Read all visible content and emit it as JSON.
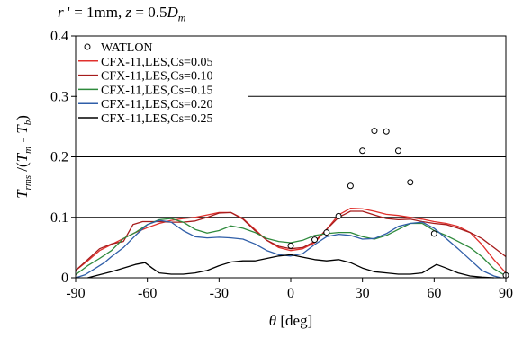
{
  "title_text": "r' = 1mm, z = 0.5D_m",
  "title_parts": {
    "r": "r",
    "eq1": " ' = 1mm, ",
    "z": "z",
    "eq2": " = 0.5",
    "D": "D",
    "sub": "m"
  },
  "chart_data": {
    "type": "line",
    "xlabel": "θ [deg]",
    "ylabel": "T_rms /(T_m - T_b)",
    "xlim": [
      -90,
      90
    ],
    "ylim": [
      0,
      0.4
    ],
    "x_ticks": [
      -90,
      -60,
      -30,
      0,
      30,
      60,
      90
    ],
    "x_tick_labels": [
      "-90",
      "-60",
      "-30",
      "0",
      "30",
      "60",
      "90"
    ],
    "y_ticks": [
      0,
      0.1,
      0.2,
      0.3,
      0.4
    ],
    "y_tick_labels": [
      "0",
      "0.1",
      "0.2",
      "0.3",
      "0.4"
    ],
    "grid_y": [
      0.1,
      0.2,
      0.3
    ],
    "legend_position": "top-left",
    "series": [
      {
        "name": "WATLON",
        "kind": "markers",
        "color": "#000000",
        "x": [
          0,
          10,
          15,
          20,
          25,
          30,
          35,
          40,
          45,
          50,
          60,
          90
        ],
        "y": [
          0.053,
          0.063,
          0.075,
          0.102,
          0.152,
          0.21,
          0.243,
          0.242,
          0.21,
          0.158,
          0.073,
          0.004
        ]
      },
      {
        "name": "CFX-11,LES,Cs=0.05",
        "kind": "line",
        "color": "#e0302c",
        "x": [
          -90,
          -85,
          -80,
          -75,
          -70,
          -65,
          -60,
          -55,
          -50,
          -45,
          -40,
          -35,
          -30,
          -25,
          -20,
          -15,
          -10,
          -5,
          0,
          5,
          10,
          15,
          20,
          25,
          30,
          35,
          40,
          45,
          50,
          55,
          60,
          65,
          70,
          75,
          80,
          85,
          90
        ],
        "y": [
          0.012,
          0.028,
          0.045,
          0.055,
          0.065,
          0.075,
          0.083,
          0.09,
          0.095,
          0.098,
          0.1,
          0.104,
          0.108,
          0.108,
          0.098,
          0.08,
          0.062,
          0.05,
          0.045,
          0.048,
          0.058,
          0.08,
          0.104,
          0.115,
          0.114,
          0.11,
          0.105,
          0.103,
          0.1,
          0.097,
          0.093,
          0.09,
          0.085,
          0.075,
          0.055,
          0.03,
          0.008
        ]
      },
      {
        "name": "CFX-11,LES,Cs=0.10",
        "kind": "line",
        "color": "#a61c1c",
        "x": [
          -90,
          -85,
          -80,
          -75,
          -70,
          -66,
          -62,
          -58,
          -55,
          -50,
          -45,
          -40,
          -35,
          -30,
          -25,
          -20,
          -15,
          -10,
          -5,
          0,
          5,
          10,
          15,
          20,
          25,
          30,
          35,
          40,
          45,
          50,
          55,
          60,
          65,
          70,
          75,
          80,
          85,
          90
        ],
        "y": [
          0.012,
          0.03,
          0.048,
          0.056,
          0.06,
          0.088,
          0.093,
          0.093,
          0.093,
          0.092,
          0.092,
          0.094,
          0.1,
          0.107,
          0.108,
          0.097,
          0.078,
          0.062,
          0.052,
          0.048,
          0.05,
          0.06,
          0.08,
          0.1,
          0.11,
          0.11,
          0.104,
          0.098,
          0.096,
          0.097,
          0.093,
          0.09,
          0.088,
          0.082,
          0.075,
          0.065,
          0.05,
          0.035
        ]
      },
      {
        "name": "CFX-11,LES,Cs=0.15",
        "kind": "line",
        "color": "#2e8a3c",
        "x": [
          -90,
          -85,
          -80,
          -75,
          -70,
          -65,
          -60,
          -55,
          -50,
          -45,
          -40,
          -35,
          -30,
          -25,
          -20,
          -15,
          -10,
          -5,
          0,
          5,
          10,
          15,
          20,
          25,
          30,
          35,
          40,
          45,
          50,
          55,
          60,
          65,
          70,
          75,
          80,
          85,
          90
        ],
        "y": [
          0.005,
          0.02,
          0.032,
          0.045,
          0.065,
          0.075,
          0.088,
          0.096,
          0.098,
          0.092,
          0.08,
          0.074,
          0.078,
          0.086,
          0.082,
          0.075,
          0.065,
          0.06,
          0.058,
          0.062,
          0.07,
          0.073,
          0.075,
          0.075,
          0.068,
          0.064,
          0.07,
          0.08,
          0.09,
          0.09,
          0.078,
          0.07,
          0.06,
          0.05,
          0.035,
          0.015,
          0.003
        ]
      },
      {
        "name": "CFX-11,LES,Cs=0.20",
        "kind": "line",
        "color": "#2f5ea8",
        "x": [
          -90,
          -86,
          -82,
          -78,
          -75,
          -70,
          -65,
          -60,
          -55,
          -50,
          -45,
          -40,
          -35,
          -30,
          -25,
          -20,
          -15,
          -10,
          -5,
          0,
          5,
          10,
          15,
          20,
          25,
          30,
          35,
          40,
          45,
          50,
          55,
          60,
          65,
          70,
          75,
          80,
          85,
          88
        ],
        "y": [
          0.0,
          0.005,
          0.015,
          0.025,
          0.035,
          0.05,
          0.07,
          0.088,
          0.095,
          0.092,
          0.078,
          0.068,
          0.066,
          0.067,
          0.066,
          0.064,
          0.056,
          0.045,
          0.038,
          0.036,
          0.04,
          0.055,
          0.068,
          0.072,
          0.07,
          0.064,
          0.065,
          0.073,
          0.085,
          0.09,
          0.092,
          0.082,
          0.065,
          0.048,
          0.03,
          0.012,
          0.003,
          0.0
        ]
      },
      {
        "name": "CFX-11,LES,Cs=0.25",
        "kind": "line",
        "color": "#000000",
        "x": [
          -85,
          -80,
          -75,
          -70,
          -65,
          -61,
          -58,
          -55,
          -50,
          -45,
          -40,
          -35,
          -30,
          -25,
          -20,
          -15,
          -10,
          -5,
          0,
          5,
          10,
          15,
          20,
          25,
          30,
          35,
          40,
          45,
          50,
          55,
          58,
          61,
          65,
          70,
          75,
          80,
          85
        ],
        "y": [
          0.0,
          0.005,
          0.01,
          0.016,
          0.022,
          0.025,
          0.016,
          0.008,
          0.006,
          0.006,
          0.008,
          0.012,
          0.02,
          0.026,
          0.028,
          0.028,
          0.032,
          0.036,
          0.038,
          0.034,
          0.03,
          0.028,
          0.03,
          0.025,
          0.016,
          0.01,
          0.008,
          0.006,
          0.006,
          0.008,
          0.015,
          0.022,
          0.016,
          0.008,
          0.003,
          0.001,
          0.0
        ]
      }
    ]
  }
}
